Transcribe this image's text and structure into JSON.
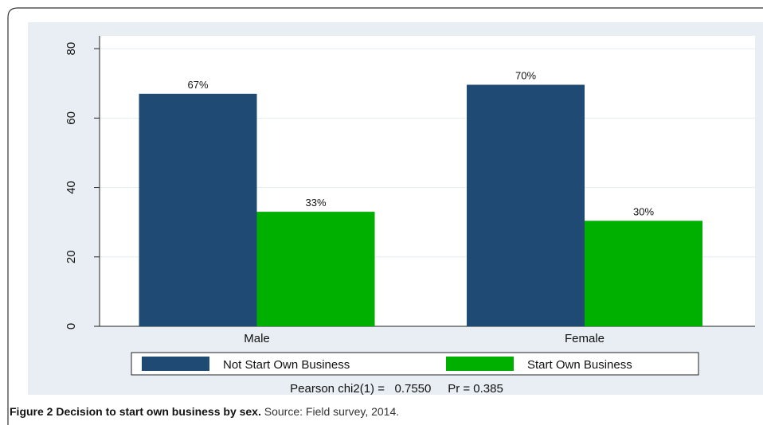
{
  "chart_data": {
    "type": "bar",
    "categories": [
      "Male",
      "Female"
    ],
    "series": [
      {
        "name": "Not Start Own Business",
        "color": "#1f4a73",
        "values": [
          67,
          69.6
        ],
        "value_labels": [
          "67%",
          "70%"
        ]
      },
      {
        "name": "Start Own Business",
        "color": "#00b000",
        "values": [
          33,
          30.4
        ],
        "value_labels": [
          "33%",
          "30%"
        ]
      }
    ],
    "ylim": [
      0,
      83.7
    ],
    "yticks": [
      0,
      20,
      40,
      60,
      80
    ],
    "grid": true,
    "annotation": "Pearson chi2(1) =   0.7550     Pr = 0.385",
    "caption_title": "Figure 2 Decision to start own business by sex.",
    "caption_text": "Source: Field survey, 2014."
  }
}
